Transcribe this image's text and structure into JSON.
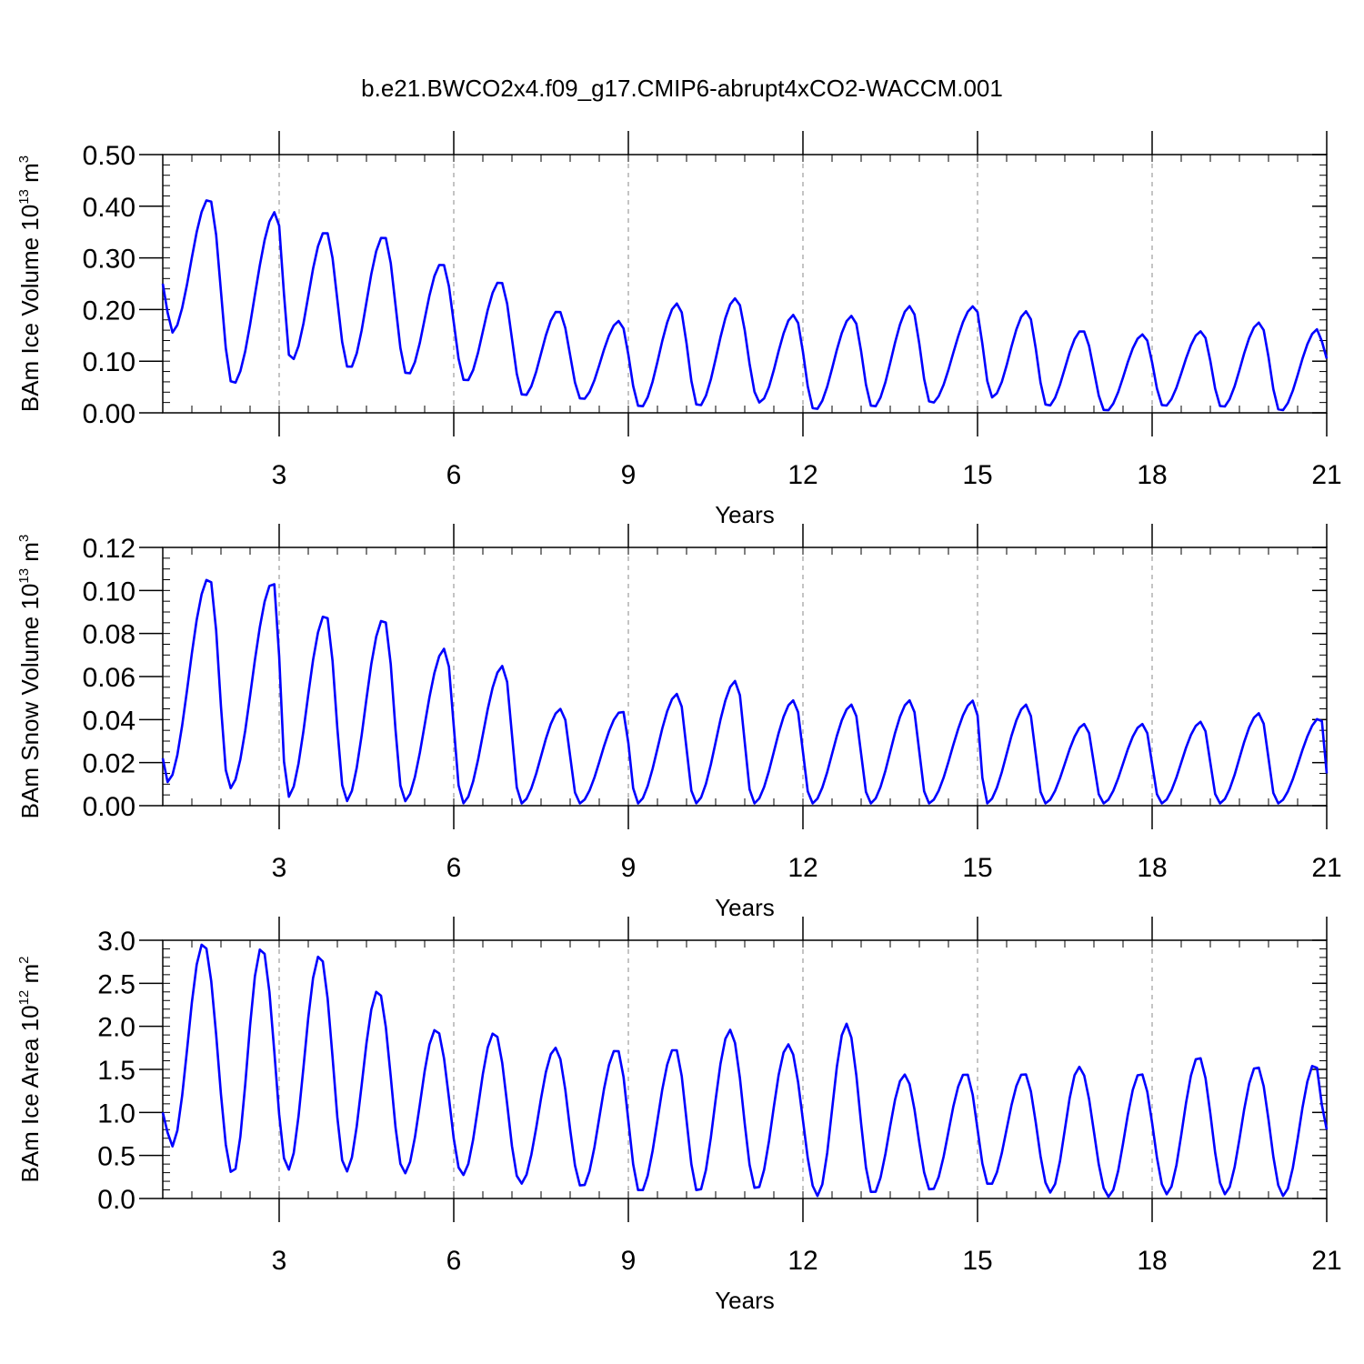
{
  "figure": {
    "title": "b.e21.BWCO2x4.f09_g17.CMIP6-abrupt4xCO2-WACCM.001"
  },
  "colors": {
    "series": "#0000ff",
    "axis": "#000000",
    "grid": "#888888"
  },
  "chart_data": [
    {
      "type": "line",
      "ylabel": {
        "prefix": "BAm Ice Volume 10",
        "exp": "13",
        "mid": " m",
        "unit_exp": "3"
      },
      "xlabel": "Years",
      "xlim": [
        1,
        21
      ],
      "ylim": [
        0,
        0.5
      ],
      "xticks": [
        3,
        6,
        9,
        12,
        15,
        18,
        21
      ],
      "yticks": [
        0,
        0.1,
        0.2,
        0.3,
        0.4,
        0.5
      ],
      "ytick_labels": [
        "0.00",
        "0.10",
        "0.20",
        "0.30",
        "0.40",
        "0.50"
      ],
      "minor": 0.02,
      "cycle": {
        "start": 1.0,
        "phase": 0.0,
        "peak_time": 0.72,
        "trough_time": 0.15,
        "power": 1.3
      },
      "anchors": [
        {
          "t": 1.0,
          "v": 0.25
        },
        {
          "t": 1.15,
          "v": 0.155
        },
        {
          "t": 1.8,
          "v": 0.415
        },
        {
          "t": 2.2,
          "v": 0.055
        },
        {
          "t": 2.95,
          "v": 0.39
        },
        {
          "t": 3.2,
          "v": 0.1
        },
        {
          "t": 3.8,
          "v": 0.352
        },
        {
          "t": 4.2,
          "v": 0.085
        },
        {
          "t": 4.8,
          "v": 0.343
        },
        {
          "t": 5.2,
          "v": 0.073
        },
        {
          "t": 5.8,
          "v": 0.29
        },
        {
          "t": 6.2,
          "v": 0.06
        },
        {
          "t": 6.8,
          "v": 0.255
        },
        {
          "t": 7.2,
          "v": 0.032
        },
        {
          "t": 7.8,
          "v": 0.198
        },
        {
          "t": 8.2,
          "v": 0.025
        },
        {
          "t": 8.85,
          "v": 0.178
        },
        {
          "t": 9.2,
          "v": 0.01
        },
        {
          "t": 9.85,
          "v": 0.212
        },
        {
          "t": 10.2,
          "v": 0.012
        },
        {
          "t": 10.85,
          "v": 0.222
        },
        {
          "t": 11.25,
          "v": 0.02
        },
        {
          "t": 11.85,
          "v": 0.19
        },
        {
          "t": 12.2,
          "v": 0.005
        },
        {
          "t": 12.85,
          "v": 0.188
        },
        {
          "t": 13.2,
          "v": 0.01
        },
        {
          "t": 13.85,
          "v": 0.207
        },
        {
          "t": 14.2,
          "v": 0.018
        },
        {
          "t": 14.95,
          "v": 0.207
        },
        {
          "t": 15.25,
          "v": 0.03
        },
        {
          "t": 15.85,
          "v": 0.197
        },
        {
          "t": 16.2,
          "v": 0.012
        },
        {
          "t": 16.8,
          "v": 0.16
        },
        {
          "t": 17.2,
          "v": 0.003
        },
        {
          "t": 17.85,
          "v": 0.152
        },
        {
          "t": 18.2,
          "v": 0.012
        },
        {
          "t": 18.85,
          "v": 0.158
        },
        {
          "t": 19.2,
          "v": 0.01
        },
        {
          "t": 19.85,
          "v": 0.175
        },
        {
          "t": 20.2,
          "v": 0.003
        },
        {
          "t": 20.85,
          "v": 0.162
        },
        {
          "t": 21.0,
          "v": 0.105
        }
      ]
    },
    {
      "type": "line",
      "ylabel": {
        "prefix": "BAm Snow Volume 10",
        "exp": "13",
        "mid": " m",
        "unit_exp": "3"
      },
      "xlabel": "Years",
      "xlim": [
        1,
        21
      ],
      "ylim": [
        0,
        0.12
      ],
      "xticks": [
        3,
        6,
        9,
        12,
        15,
        18,
        21
      ],
      "yticks": [
        0,
        0.02,
        0.04,
        0.06,
        0.08,
        0.1,
        0.12
      ],
      "ytick_labels": [
        "0.00",
        "0.02",
        "0.04",
        "0.06",
        "0.08",
        "0.10",
        "0.12"
      ],
      "minor": 0.005,
      "anchors": [
        {
          "t": 1.0,
          "v": 0.022
        },
        {
          "t": 1.08,
          "v": 0.011
        },
        {
          "t": 1.8,
          "v": 0.106
        },
        {
          "t": 2.15,
          "v": 0.008
        },
        {
          "t": 2.9,
          "v": 0.104
        },
        {
          "t": 3.15,
          "v": 0.004
        },
        {
          "t": 3.8,
          "v": 0.089
        },
        {
          "t": 4.15,
          "v": 0.002
        },
        {
          "t": 4.8,
          "v": 0.087
        },
        {
          "t": 5.15,
          "v": 0.002
        },
        {
          "t": 5.85,
          "v": 0.073
        },
        {
          "t": 6.15,
          "v": 0.001
        },
        {
          "t": 6.85,
          "v": 0.065
        },
        {
          "t": 7.15,
          "v": 0.001
        },
        {
          "t": 7.85,
          "v": 0.045
        },
        {
          "t": 8.15,
          "v": 0.001
        },
        {
          "t": 8.9,
          "v": 0.044
        },
        {
          "t": 9.15,
          "v": 0.001
        },
        {
          "t": 9.85,
          "v": 0.052
        },
        {
          "t": 10.15,
          "v": 0.001
        },
        {
          "t": 10.85,
          "v": 0.058
        },
        {
          "t": 11.15,
          "v": 0.001
        },
        {
          "t": 11.85,
          "v": 0.049
        },
        {
          "t": 12.15,
          "v": 0.001
        },
        {
          "t": 12.85,
          "v": 0.047
        },
        {
          "t": 13.15,
          "v": 0.001
        },
        {
          "t": 13.85,
          "v": 0.049
        },
        {
          "t": 14.15,
          "v": 0.001
        },
        {
          "t": 14.95,
          "v": 0.049
        },
        {
          "t": 15.15,
          "v": 0.001
        },
        {
          "t": 15.85,
          "v": 0.047
        },
        {
          "t": 16.15,
          "v": 0.001
        },
        {
          "t": 16.85,
          "v": 0.038
        },
        {
          "t": 17.15,
          "v": 0.001
        },
        {
          "t": 17.85,
          "v": 0.038
        },
        {
          "t": 18.15,
          "v": 0.001
        },
        {
          "t": 18.85,
          "v": 0.039
        },
        {
          "t": 19.15,
          "v": 0.001
        },
        {
          "t": 19.85,
          "v": 0.043
        },
        {
          "t": 20.15,
          "v": 0.001
        },
        {
          "t": 20.9,
          "v": 0.041
        },
        {
          "t": 21.0,
          "v": 0.015
        }
      ]
    },
    {
      "type": "line",
      "ylabel": {
        "prefix": "BAm Ice Area 10",
        "exp": "12",
        "mid": " m",
        "unit_exp": "2"
      },
      "xlabel": "Years",
      "xlim": [
        1,
        21
      ],
      "ylim": [
        0,
        3.0
      ],
      "xticks": [
        3,
        6,
        9,
        12,
        15,
        18,
        21
      ],
      "yticks": [
        0,
        0.5,
        1.0,
        1.5,
        2.0,
        2.5,
        3.0
      ],
      "ytick_labels": [
        "0.0",
        "0.5",
        "1.0",
        "1.5",
        "2.0",
        "2.5",
        "3.0"
      ],
      "minor": 0.1,
      "anchors": [
        {
          "t": 1.0,
          "v": 1.0
        },
        {
          "t": 1.15,
          "v": 0.6
        },
        {
          "t": 1.7,
          "v": 2.97
        },
        {
          "t": 2.2,
          "v": 0.28
        },
        {
          "t": 2.7,
          "v": 2.92
        },
        {
          "t": 3.15,
          "v": 0.33
        },
        {
          "t": 3.7,
          "v": 2.83
        },
        {
          "t": 4.15,
          "v": 0.31
        },
        {
          "t": 4.7,
          "v": 2.42
        },
        {
          "t": 5.15,
          "v": 0.29
        },
        {
          "t": 5.7,
          "v": 1.97
        },
        {
          "t": 6.15,
          "v": 0.27
        },
        {
          "t": 6.7,
          "v": 1.93
        },
        {
          "t": 7.15,
          "v": 0.17
        },
        {
          "t": 7.75,
          "v": 1.75
        },
        {
          "t": 8.2,
          "v": 0.13
        },
        {
          "t": 8.8,
          "v": 1.74
        },
        {
          "t": 9.2,
          "v": 0.07
        },
        {
          "t": 9.8,
          "v": 1.75
        },
        {
          "t": 10.2,
          "v": 0.07
        },
        {
          "t": 10.75,
          "v": 1.96
        },
        {
          "t": 11.2,
          "v": 0.1
        },
        {
          "t": 11.75,
          "v": 1.79
        },
        {
          "t": 12.25,
          "v": 0.03
        },
        {
          "t": 12.75,
          "v": 2.03
        },
        {
          "t": 13.2,
          "v": 0.05
        },
        {
          "t": 13.75,
          "v": 1.44
        },
        {
          "t": 14.2,
          "v": 0.09
        },
        {
          "t": 14.8,
          "v": 1.46
        },
        {
          "t": 15.2,
          "v": 0.15
        },
        {
          "t": 15.8,
          "v": 1.46
        },
        {
          "t": 16.25,
          "v": 0.07
        },
        {
          "t": 16.75,
          "v": 1.53
        },
        {
          "t": 17.25,
          "v": 0.02
        },
        {
          "t": 17.8,
          "v": 1.46
        },
        {
          "t": 18.25,
          "v": 0.05
        },
        {
          "t": 18.8,
          "v": 1.65
        },
        {
          "t": 19.25,
          "v": 0.05
        },
        {
          "t": 19.8,
          "v": 1.54
        },
        {
          "t": 20.25,
          "v": 0.03
        },
        {
          "t": 20.8,
          "v": 1.57
        },
        {
          "t": 21.0,
          "v": 0.8
        }
      ]
    }
  ]
}
